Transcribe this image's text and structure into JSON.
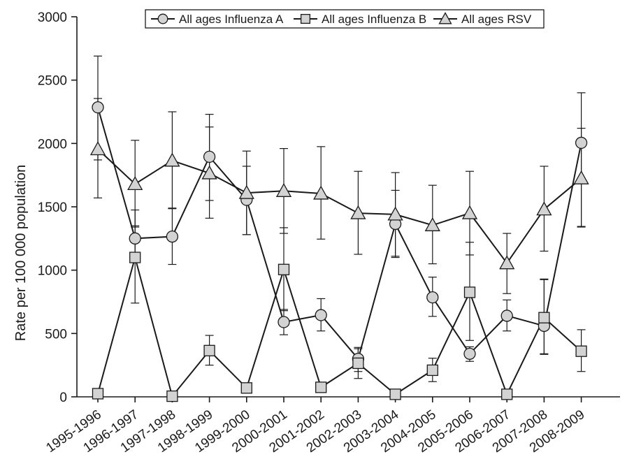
{
  "chart_data": {
    "type": "line",
    "title": "",
    "xlabel": "",
    "ylabel": "Rate per 100 000 population",
    "ylim": [
      0,
      3000
    ],
    "yticks": [
      "0",
      "500",
      "1000",
      "1500",
      "2000",
      "2500",
      "3000"
    ],
    "ytick_values": [
      0,
      500,
      1000,
      1500,
      2000,
      2500,
      3000
    ],
    "categories": [
      "1995-1996",
      "1996-1997",
      "1997-1998",
      "1998-1999",
      "1999-2000",
      "2000-2001",
      "2001-2002",
      "2002-2003",
      "2003-2004",
      "2004-2005",
      "2005-2006",
      "2006-2007",
      "2007-2008",
      "2008-2009"
    ],
    "grid": false,
    "legend_position": "top",
    "series": [
      {
        "name": "All ages Influenza A",
        "marker": "circle",
        "values": [
          2285,
          1250,
          1265,
          1895,
          1555,
          590,
          645,
          300,
          1365,
          785,
          340,
          640,
          560,
          2005
        ],
        "error_low": [
          1870,
          1140,
          1045,
          1550,
          1280,
          490,
          520,
          200,
          1110,
          635,
          280,
          520,
          340,
          1340
        ],
        "error_high": [
          2690,
          1350,
          1485,
          2230,
          1820,
          690,
          775,
          390,
          1630,
          945,
          395,
          765,
          930,
          2400
        ]
      },
      {
        "name": "All ages Influenza B",
        "marker": "square",
        "values": [
          25,
          1100,
          5,
          365,
          70,
          1005,
          75,
          265,
          20,
          210,
          825,
          20,
          625,
          360
        ],
        "error_low": [
          25,
          740,
          5,
          250,
          70,
          680,
          75,
          145,
          20,
          120,
          445,
          20,
          335,
          200
        ],
        "error_high": [
          25,
          1475,
          5,
          485,
          70,
          1335,
          75,
          380,
          20,
          305,
          1220,
          20,
          925,
          530
        ]
      },
      {
        "name": "All ages RSV",
        "marker": "triangle",
        "values": [
          1955,
          1680,
          1865,
          1765,
          1610,
          1625,
          1605,
          1450,
          1440,
          1355,
          1450,
          1055,
          1480,
          1725
        ],
        "error_low": [
          1570,
          1340,
          1490,
          1410,
          1280,
          1290,
          1245,
          1125,
          1100,
          1050,
          1120,
          815,
          1150,
          1345
        ],
        "error_high": [
          2355,
          2025,
          2250,
          2130,
          1940,
          1960,
          1975,
          1780,
          1770,
          1670,
          1780,
          1290,
          1820,
          2120
        ]
      }
    ]
  }
}
